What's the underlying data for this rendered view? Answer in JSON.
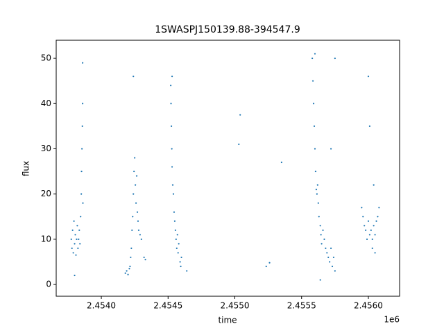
{
  "chart_data": {
    "type": "scatter",
    "title": "1SWASPJ150139.88-394547.9",
    "x_label": "time",
    "y_label": "flux",
    "x_offset_label": "1e6",
    "series": [
      {
        "name": "flux",
        "color": "#1f77b4",
        "x": [
          2453775,
          2453780,
          2453785,
          2453790,
          2453795,
          2453800,
          2453805,
          2453810,
          2453815,
          2453820,
          2453825,
          2453830,
          2453835,
          2453840,
          2453845,
          2453850,
          2453852,
          2453855,
          2453858,
          2453860,
          2453862,
          2453800,
          2453860,
          2454180,
          2454190,
          2454200,
          2454210,
          2454215,
          2454220,
          2454225,
          2454230,
          2454235,
          2454240,
          2454245,
          2454250,
          2454255,
          2454260,
          2454265,
          2454270,
          2454275,
          2454280,
          2454290,
          2454300,
          2454240,
          2454320,
          2454330,
          2454520,
          2454522,
          2454525,
          2454528,
          2454530,
          2454535,
          2454540,
          2454545,
          2454550,
          2454555,
          2454560,
          2454565,
          2454570,
          2454575,
          2454580,
          2454590,
          2454595,
          2454600,
          2454530,
          2454640,
          2455030,
          2455040,
          2455235,
          2455260,
          2455350,
          2455580,
          2455585,
          2455590,
          2455595,
          2455600,
          2455605,
          2455610,
          2455615,
          2455620,
          2455625,
          2455630,
          2455640,
          2455645,
          2455650,
          2455660,
          2455670,
          2455680,
          2455690,
          2455700,
          2455710,
          2455720,
          2455730,
          2455740,
          2455750,
          2455600,
          2455640,
          2455750,
          2455720,
          2455950,
          2455960,
          2455970,
          2455980,
          2455990,
          2456000,
          2456010,
          2456020,
          2456030,
          2456040,
          2456050,
          2456060,
          2456070,
          2456080,
          2456000,
          2456030,
          2456050,
          2456040,
          2456010
        ],
        "values": [
          10,
          8,
          12,
          7,
          14,
          9,
          11,
          6.5,
          10,
          13,
          8,
          10,
          12,
          9,
          15,
          20,
          25,
          30,
          35,
          40,
          18,
          2,
          49,
          2.5,
          3,
          2.2,
          3.5,
          4,
          6,
          8,
          12,
          15,
          20,
          25,
          28,
          22,
          18,
          24,
          16,
          14,
          12,
          11,
          10,
          46,
          6,
          5.5,
          44,
          40,
          35,
          30,
          26,
          22,
          20,
          16,
          14,
          12,
          10,
          8,
          11,
          7,
          9,
          5,
          4,
          6,
          46,
          3,
          31,
          37.5,
          4,
          4.8,
          27,
          50,
          45,
          40,
          35,
          30,
          25,
          21,
          20,
          22,
          18,
          15,
          13,
          11,
          9,
          12,
          10,
          8,
          7,
          6,
          5,
          8,
          4,
          6,
          3,
          51,
          1,
          50,
          30,
          17,
          15,
          13,
          12,
          10,
          14,
          11,
          12,
          10,
          13,
          11,
          14,
          15,
          17,
          46,
          8,
          7,
          22,
          35
        ]
      }
    ],
    "xlim": [
      2453662,
      2456234
    ],
    "ylim": [
      -2.6,
      54
    ],
    "xticks": [
      {
        "value": 2454000,
        "label": "2.4540"
      },
      {
        "value": 2454500,
        "label": "2.4545"
      },
      {
        "value": 2455000,
        "label": "2.4550"
      },
      {
        "value": 2455500,
        "label": "2.4555"
      },
      {
        "value": 2456000,
        "label": "2.4560"
      }
    ],
    "yticks": [
      0,
      10,
      20,
      30,
      40,
      50
    ]
  }
}
